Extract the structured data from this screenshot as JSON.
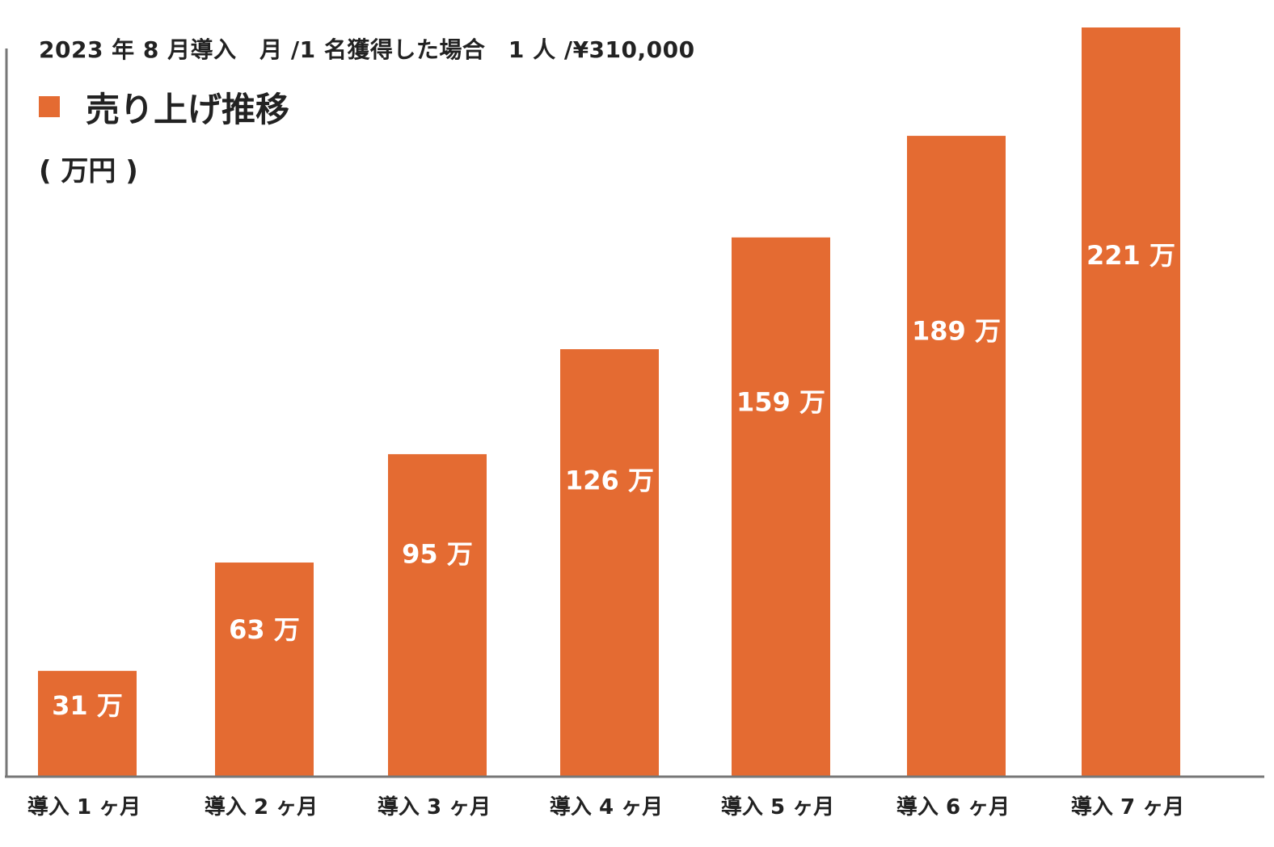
{
  "colors": {
    "bar": "#E46B32",
    "axis": "#777777",
    "text": "#222222"
  },
  "chart_data": {
    "type": "bar",
    "subtitle": "2023 年 8 月導入　月 /1 名獲得した場合　1 人 /¥310,000",
    "title": "売り上げ推移",
    "ylabel": "( 万円 )",
    "xlabel": "",
    "categories": [
      "導入 1 ヶ月",
      "導入 2 ヶ月",
      "導入 3 ヶ月",
      "導入 4 ヶ月",
      "導入 5 ヶ月",
      "導入 6 ヶ月",
      "導入 7 ヶ月"
    ],
    "values": [
      31,
      63,
      95,
      126,
      159,
      189,
      221
    ],
    "data_labels": [
      "31 万",
      "63 万",
      "95 万",
      "126 万",
      "159 万",
      "189 万",
      "221 万"
    ],
    "series": [
      {
        "name": "売り上げ推移",
        "values": [
          31,
          63,
          95,
          126,
          159,
          189,
          221
        ]
      }
    ],
    "ylim": [
      0,
      221
    ],
    "grid": false,
    "legend_position": "top-left"
  }
}
